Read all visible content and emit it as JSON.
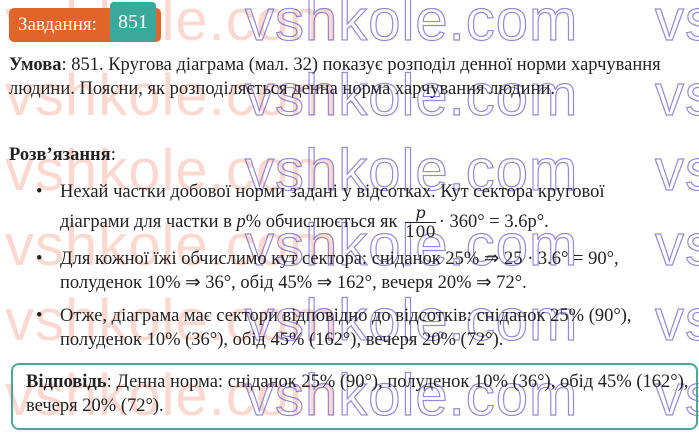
{
  "watermark": "vshkole.com",
  "header": {
    "label": "Завдання:",
    "number": "851",
    "colors": {
      "label_bg": "#e0652a",
      "number_bg": "#3aa89a"
    }
  },
  "condition": {
    "title": "Умова",
    "text": ": 851. Кругова діаграма (мал. 32) показує розподіл денної норми харчування людини. Поясни, як розподіляється денна норма харчування людини."
  },
  "solution": {
    "title": "Розв’язання",
    "bullets": [
      {
        "text1": "Нехай частки добової норми задані у відсотках. Кут сектора кругової діаграми для частки в ",
        "var": "p",
        "text2": "% обчислюється як ",
        "frac_num": "p",
        "frac_den": "100",
        "text3": "· 360° = 3.6p°."
      },
      {
        "text": "Для кожної їжі обчислимо кут сектора: сніданок 25% ⇒ 25 · 3.6° = 90°, полуденок 10% ⇒ 36°, обід 45% ⇒ 162°, вечеря 20% ⇒ 72°."
      },
      {
        "text": "Отже, діаграма має сектори відповідно до відсотків: сніданок 25% (90°), полуденок 10% (36°), обід 45% (162°), вечеря 20% (72°)."
      }
    ]
  },
  "answer": {
    "title": "Відповідь",
    "text": ": Денна норма: сніданок 25% (90°), полуденок 10% (36°), обід 45% (162°), вечеря 20% (72°).",
    "border_color": "#4aa89a"
  }
}
